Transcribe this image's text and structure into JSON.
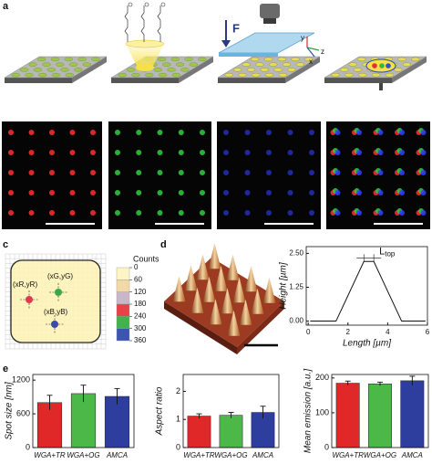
{
  "panel_labels": [
    "a",
    "b",
    "c",
    "d",
    "e"
  ],
  "panel_a": {
    "force_label": "F",
    "axes": [
      "y",
      "z",
      "x"
    ]
  },
  "panel_c": {
    "spot_labels": [
      "(xR,yR)",
      "(xG,yG)",
      "(xB,yB)"
    ],
    "colorbar": {
      "title": "Counts",
      "ticks": [
        0,
        60,
        120,
        180,
        240,
        300,
        360
      ],
      "colors": [
        "#fdf6c4",
        "#f3d9a8",
        "#c9b7c9",
        "#e8414a",
        "#42b24c",
        "#3c56b0"
      ]
    }
  },
  "chart_data": [
    {
      "type": "line",
      "xlabel": "Length [µm]",
      "ylabel": "Height [µm]",
      "x": [
        0.1,
        1.4,
        2.8,
        3.3,
        4.7,
        5.9
      ],
      "values": [
        0,
        0,
        2.2,
        2.2,
        0,
        0
      ],
      "color": "#111111",
      "xlim": [
        -0.1,
        6
      ],
      "ylim": [
        -0.15,
        2.75
      ],
      "xticks": [
        0,
        2,
        4,
        6
      ],
      "yticks": [
        {
          "value": 0,
          "label": "0.00"
        },
        {
          "value": 1.25,
          "label": "1.25"
        },
        {
          "value": 2.5,
          "label": "2.50"
        }
      ],
      "annotation": {
        "text": "L",
        "sub": "top"
      }
    },
    {
      "type": "bar",
      "ylabel": "Spot size [nm]",
      "categories": [
        "WGA+TR",
        "WGA+OG",
        "AMCA"
      ],
      "values": [
        800,
        960,
        910
      ],
      "errors": [
        130,
        150,
        140
      ],
      "colors": [
        "#e02828",
        "#4cb848",
        "#2e3e9e"
      ],
      "ylim": [
        0,
        1300
      ],
      "yticks": [
        0,
        600,
        1200
      ]
    },
    {
      "type": "bar",
      "ylabel": "Aspect ratio",
      "categories": [
        "WGA+TR",
        "WGA+OG",
        "AMCA"
      ],
      "values": [
        1.12,
        1.15,
        1.25
      ],
      "errors": [
        0.08,
        0.1,
        0.22
      ],
      "colors": [
        "#e02828",
        "#4cb848",
        "#2e3e9e"
      ],
      "ylim": [
        0,
        2.6
      ],
      "yticks": [
        0,
        1,
        2
      ]
    },
    {
      "type": "bar",
      "ylabel": "Mean emission [a.u.]",
      "categories": [
        "WGA+TR",
        "WGA+OG",
        "AMCA"
      ],
      "values": [
        185,
        183,
        192
      ],
      "errors": [
        6,
        5,
        13
      ],
      "colors": [
        "#e02828",
        "#4cb848",
        "#2e3e9e"
      ],
      "ylim": [
        0,
        210
      ],
      "yticks": [
        0,
        100,
        200
      ]
    }
  ]
}
